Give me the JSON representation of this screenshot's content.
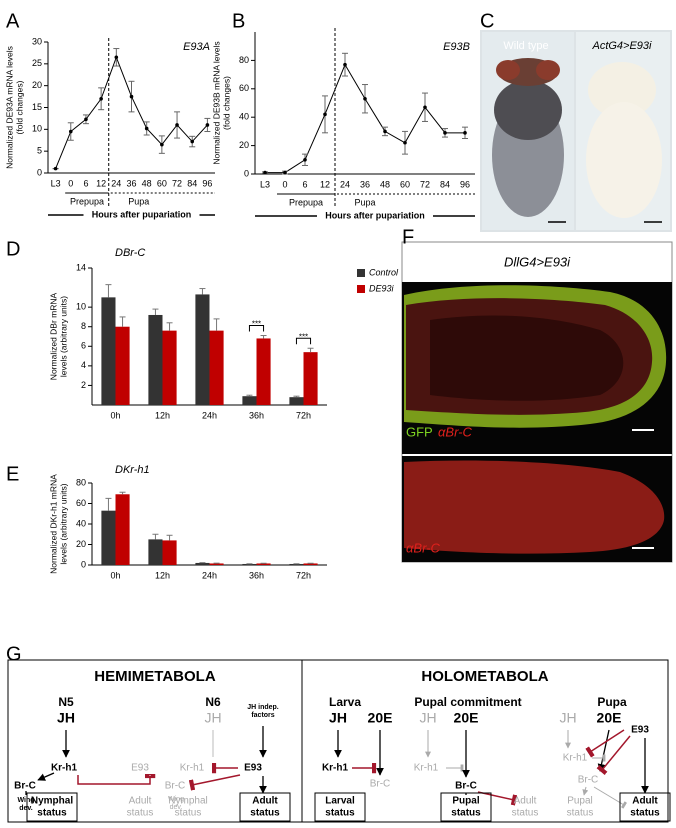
{
  "panel_labels": [
    "A",
    "B",
    "C",
    "D",
    "E",
    "F",
    "G"
  ],
  "chart_data": [
    {
      "type": "line",
      "title": "E93A",
      "y_label": [
        "Normalized DE93A mRNA levels",
        "(fold changes)"
      ],
      "categories": [
        "L3",
        "0",
        "6",
        "12",
        "24",
        "36",
        "48",
        "60",
        "72",
        "84",
        "96"
      ],
      "values": [
        1,
        9.5,
        12.3,
        17,
        26.5,
        17.5,
        10.2,
        6.5,
        11,
        7.2,
        11
      ],
      "errors": [
        0,
        2,
        1,
        2.5,
        2,
        3.5,
        1.5,
        2,
        3,
        1.2,
        1.5
      ],
      "color": "#000000",
      "ylim": [
        0,
        30
      ],
      "yticks": [
        0,
        5,
        10,
        15,
        20,
        25,
        30
      ],
      "phases": [
        "Prepupa",
        "Pupa"
      ],
      "x_label": "Hours after pupariation"
    },
    {
      "type": "line",
      "title": "E93B",
      "y_label": [
        "Normalized DE93B mRNA levels",
        "(fold changes)"
      ],
      "categories": [
        "L3",
        "0",
        "6",
        "12",
        "24",
        "36",
        "48",
        "60",
        "72",
        "84",
        "96"
      ],
      "values": [
        1,
        1,
        10,
        42,
        77,
        53,
        30,
        22,
        47,
        29,
        29
      ],
      "errors": [
        0.5,
        1,
        4,
        13,
        8,
        10,
        3,
        8,
        10,
        3,
        4
      ],
      "color": "#000000",
      "ylim": [
        0,
        100
      ],
      "yticks": [
        0,
        20,
        40,
        60,
        80
      ],
      "phases": [
        "Prepupa",
        "Pupa"
      ],
      "x_label": "Hours after pupariation"
    },
    {
      "type": "bar",
      "title": "DBr-C",
      "y_label": [
        "Normalized DBr mRNA",
        "levels (arbitrary units)"
      ],
      "categories": [
        "0h",
        "12h",
        "24h",
        "36h",
        "72h"
      ],
      "series": [
        {
          "name": "Control",
          "color": "#333333",
          "values": [
            11,
            9.2,
            11.3,
            0.9,
            0.8
          ],
          "errors": [
            1.3,
            0.6,
            0.6,
            0.1,
            0.1
          ]
        },
        {
          "name": "DE93i",
          "color": "#c00000",
          "values": [
            8,
            7.6,
            7.6,
            6.8,
            5.4
          ],
          "errors": [
            1,
            0.8,
            1.2,
            0.3,
            0.4
          ]
        }
      ],
      "ylim": [
        0,
        14
      ],
      "yticks": [
        2,
        4,
        6,
        8,
        10,
        14
      ],
      "legend": "right",
      "annotations": [
        "***",
        "***"
      ]
    },
    {
      "type": "bar",
      "title": "DKr-h1",
      "y_label": [
        "Normalized DKr-h1 mRNA",
        "levels (arbitrary units)"
      ],
      "categories": [
        "0h",
        "12h",
        "24h",
        "36h",
        "72h"
      ],
      "series": [
        {
          "color": "#333333",
          "values": [
            53,
            25,
            2,
            1,
            1
          ],
          "errors": [
            12,
            5,
            0.3,
            0.2,
            0.2
          ]
        },
        {
          "color": "#c00000",
          "values": [
            69,
            24,
            1.5,
            1.5,
            1.5
          ],
          "errors": [
            2,
            5,
            0.3,
            0.2,
            0.2
          ]
        }
      ],
      "ylim": [
        0,
        80
      ],
      "yticks": [
        0,
        20,
        40,
        60,
        80
      ],
      "legend": false
    }
  ],
  "images": [
    {
      "labels": [
        "Wild type",
        "ActG4>E93i"
      ]
    },
    {
      "title": "DllG4>E93i",
      "labels": [
        "GFP",
        "αBr-C"
      ]
    },
    {
      "labels": [
        "αBr-C"
      ]
    }
  ],
  "diagram": {
    "titles": [
      "HEMIMETABOLA",
      "HOLOMETABOLA"
    ],
    "stages": [
      "N5",
      "N6",
      "Larva",
      "Pupal commitment",
      "Pupa"
    ],
    "nodes": [
      {
        "lines": [
          "JH"
        ]
      },
      {
        "lines": [
          "Kr-h1"
        ]
      },
      {
        "lines": [
          "E93"
        ]
      },
      {
        "lines": [
          "Br-C"
        ]
      },
      {
        "lines": [
          "Wing",
          "dev."
        ]
      },
      {
        "lines": [
          "Nymphal",
          "status"
        ]
      },
      {
        "lines": [
          "Adult",
          "status"
        ]
      },
      {
        "lines": [
          "JH"
        ]
      },
      {
        "lines": [
          "JH indep.",
          "factors"
        ]
      },
      {
        "lines": [
          "Kr-h1"
        ]
      },
      {
        "lines": [
          "E93"
        ]
      },
      {
        "lines": [
          "Br-C"
        ]
      },
      {
        "lines": [
          "Wing",
          "dev."
        ]
      },
      {
        "lines": [
          "Nymphal",
          "status"
        ]
      },
      {
        "lines": [
          "Adult",
          "status"
        ]
      },
      {
        "lines": [
          "JH"
        ]
      },
      {
        "lines": [
          "20E"
        ]
      },
      {
        "lines": [
          "Kr-h1"
        ]
      },
      {
        "lines": [
          "Br-C"
        ]
      },
      {
        "lines": [
          "Larval",
          "status"
        ]
      },
      {
        "lines": [
          "JH"
        ]
      },
      {
        "lines": [
          "20E"
        ]
      },
      {
        "lines": [
          "Kr-h1"
        ]
      },
      {
        "lines": [
          "Br-C"
        ]
      },
      {
        "lines": [
          "Pupal",
          "status"
        ]
      },
      {
        "lines": [
          "Adult",
          "status"
        ]
      },
      {
        "lines": [
          "JH"
        ]
      },
      {
        "lines": [
          "20E"
        ]
      },
      {
        "lines": [
          "E93"
        ]
      },
      {
        "lines": [
          "Kr-h1"
        ]
      },
      {
        "lines": [
          "Br-C"
        ]
      },
      {
        "lines": [
          "Pupal",
          "status"
        ]
      },
      {
        "lines": [
          "Adult",
          "status"
        ]
      }
    ]
  }
}
